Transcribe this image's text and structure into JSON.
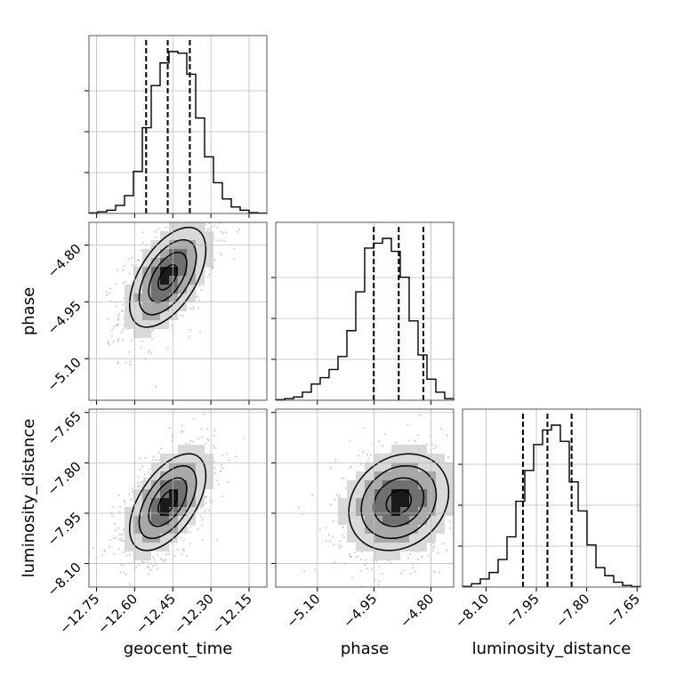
{
  "chart_data": {
    "type": "corner",
    "parameters": [
      "geocent_time",
      "phase",
      "luminosity_distance"
    ],
    "axes": {
      "geocent_time": {
        "range": [
          -12.78,
          -12.08
        ],
        "ticks": [
          -12.75,
          -12.6,
          -12.45,
          -12.3,
          -12.15
        ],
        "tick_labels": [
          "−12.75",
          "−12.60",
          "−12.45",
          "−12.30",
          "−12.15"
        ],
        "quantiles": [
          -12.555,
          -12.47,
          -12.383
        ]
      },
      "phase": {
        "range": [
          -5.21,
          -4.74
        ],
        "ticks": [
          -5.1,
          -4.95,
          -4.8
        ],
        "tick_labels": [
          "−5.10",
          "−4.95",
          "−4.80"
        ],
        "quantiles": [
          -4.951,
          -4.885,
          -4.82
        ]
      },
      "luminosity_distance": {
        "range": [
          -8.17,
          -7.64
        ],
        "ticks": [
          -8.1,
          -7.95,
          -7.8,
          -7.65
        ],
        "tick_labels": [
          "−8.10",
          "−7.95",
          "−7.80",
          "−7.65"
        ],
        "quantiles": [
          -7.99,
          -7.917,
          -7.845
        ]
      }
    },
    "histograms": {
      "geocent_time": [
        0.004,
        0.01,
        0.02,
        0.05,
        0.11,
        0.26,
        0.53,
        0.79,
        0.93,
        1.0,
        0.99,
        0.86,
        0.59,
        0.35,
        0.19,
        0.09,
        0.04,
        0.02,
        0.005,
        0.002
      ],
      "phase": [
        0.004,
        0.01,
        0.02,
        0.05,
        0.1,
        0.14,
        0.19,
        0.27,
        0.43,
        0.67,
        0.94,
        0.97,
        1.0,
        0.92,
        0.76,
        0.49,
        0.28,
        0.13,
        0.05,
        0.01
      ],
      "luminosity_distance": [
        0.004,
        0.02,
        0.05,
        0.09,
        0.17,
        0.31,
        0.53,
        0.72,
        0.88,
        0.97,
        1.0,
        0.9,
        0.65,
        0.47,
        0.26,
        0.12,
        0.07,
        0.03,
        0.01,
        0.003
      ]
    },
    "joint": [
      {
        "x": "geocent_time",
        "y": "phase",
        "center": [
          -12.47,
          -4.885
        ],
        "sigma": [
          0.075,
          0.066
        ],
        "corr": 0.55
      },
      {
        "x": "geocent_time",
        "y": "luminosity_distance",
        "center": [
          -12.47,
          -7.917
        ],
        "sigma": [
          0.075,
          0.072
        ],
        "corr": 0.55
      },
      {
        "x": "phase",
        "y": "luminosity_distance",
        "center": [
          -4.885,
          -7.917
        ],
        "sigma": [
          0.066,
          0.072
        ],
        "corr": 0.2
      }
    ],
    "contour_levels": [
      0.5,
      1.0,
      1.5,
      2.0
    ],
    "grid": true,
    "xlabels": [
      "geocent_time",
      "phase",
      "luminosity_distance"
    ],
    "ylabels": [
      "phase",
      "luminosity_distance"
    ]
  }
}
